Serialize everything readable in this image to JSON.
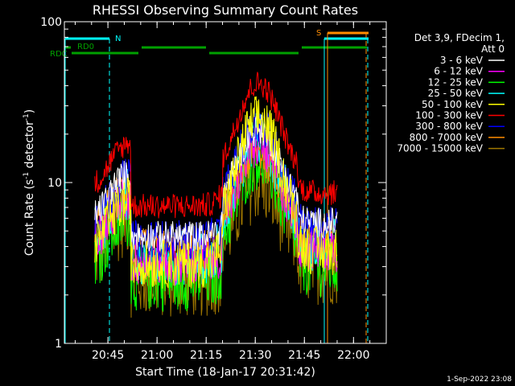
{
  "chart_data": {
    "type": "line",
    "title": "RHESSI Observing Summary Count Rates",
    "xlabel": "Start Time (18-Jan-17 20:31:42)",
    "ylabel": "Count Rate (s⁻¹ detector⁻¹)",
    "ylabel_main": "Count Rate (s",
    "ylabel_sup1": "-1",
    "ylabel_mid": " detector",
    "ylabel_sup2": "-1",
    "ylabel_end": ")",
    "yscale": "log",
    "ylim": [
      1,
      100
    ],
    "xlim": [
      "20:31:42",
      "22:10:00"
    ],
    "x_ticks": [
      "20:45",
      "21:00",
      "21:15",
      "21:30",
      "21:45",
      "22:00"
    ],
    "y_ticks": [
      "1",
      "10",
      "100"
    ],
    "legend_title": [
      "Det 3,9, FDecim 1,",
      "Att 0"
    ],
    "legend_position": "right",
    "series": [
      {
        "name": "3 - 6 keV",
        "color": "#ffffff"
      },
      {
        "name": "6 - 12 keV",
        "color": "#ff00ff"
      },
      {
        "name": "12 - 25 keV",
        "color": "#00ff00"
      },
      {
        "name": "25 - 50 keV",
        "color": "#00ffff"
      },
      {
        "name": "50 - 100 keV",
        "color": "#ffff00"
      },
      {
        "name": "100 - 300 keV",
        "color": "#ff0000"
      },
      {
        "name": "300 - 800 keV",
        "color": "#0000ff"
      },
      {
        "name": "800 - 7000 keV",
        "color": "#ff8c00"
      },
      {
        "name": "7000 - 15000 keV",
        "color": "#a07800"
      }
    ],
    "flag_labels": {
      "n": "N",
      "s": "S",
      "rd0": "RD0",
      "rdc": "RDC"
    },
    "timestamp": "1-Sep-2022 23:08"
  }
}
